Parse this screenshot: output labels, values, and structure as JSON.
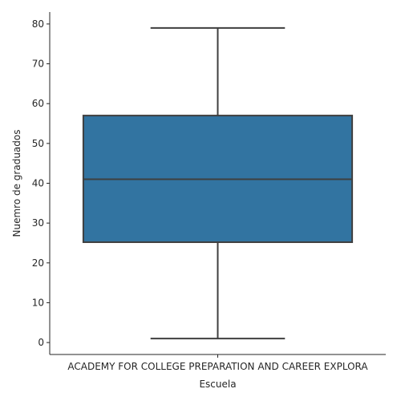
{
  "chart_data": {
    "type": "box",
    "xlabel": "Escuela",
    "ylabel": "Nuemro de graduados",
    "categories": [
      "ACADEMY FOR COLLEGE PREPARATION AND CAREER EXPLORA"
    ],
    "boxes": [
      {
        "category": "ACADEMY FOR COLLEGE PREPARATION AND CAREER EXPLORA",
        "whisker_low": 1,
        "q1": 25.2,
        "median": 41,
        "q3": 57,
        "whisker_high": 79
      }
    ],
    "ylim": [
      -3,
      83
    ],
    "yticks": [
      0,
      10,
      20,
      30,
      40,
      50,
      60,
      70,
      80
    ],
    "grid": false,
    "colors": {
      "box_fill": "#3274a1",
      "line": "#3f3f3f",
      "axis": "#262626"
    }
  }
}
